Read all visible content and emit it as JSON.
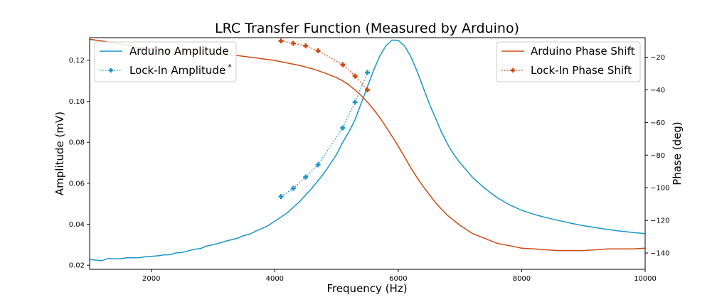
{
  "chart_data": {
    "type": "line",
    "title": "LRC Transfer Function (Measured by Arduino)",
    "xlabel": "Frequency (Hz)",
    "ylabel_left": "Amplitude (mV)",
    "ylabel_right": "Phase (deg)",
    "xlim": [
      1000,
      10000
    ],
    "ylim_left": [
      0.018,
      0.131
    ],
    "ylim_right": [
      -150,
      -8
    ],
    "xticks": [
      2000,
      4000,
      6000,
      8000,
      10000
    ],
    "yticks_left": [
      0.02,
      0.04,
      0.06,
      0.08,
      0.1,
      0.12
    ],
    "yticks_left_labels": [
      "0.02",
      "0.04",
      "0.06",
      "0.08",
      "0.10",
      "0.12"
    ],
    "yticks_right": [
      -140,
      -120,
      -100,
      -80,
      -60,
      -40,
      -20
    ],
    "grid": false,
    "legend_left": {
      "placement": "top-left",
      "entries": [
        "Arduino Amplitude",
        "Lock-In Amplitude"
      ],
      "superscript": "*"
    },
    "legend_right": {
      "placement": "top-right",
      "entries": [
        "Arduino Phase Shift",
        "Lock-In Phase Shift"
      ]
    },
    "colors": {
      "amplitude": "#1a96c8",
      "phase": "#cc4a12"
    },
    "series": [
      {
        "name": "Arduino Amplitude",
        "axis": "left",
        "style": "solid",
        "color": "#1a96c8",
        "x": [
          1000,
          1200,
          1300,
          1400,
          1500,
          1600,
          1700,
          1800,
          1900,
          2000,
          2100,
          2200,
          2300,
          2400,
          2500,
          2600,
          2700,
          2800,
          2900,
          3000,
          3100,
          3200,
          3400,
          3500,
          3600,
          3700,
          3800,
          3900,
          4000,
          4200,
          4400,
          4600,
          4800,
          5000,
          5100,
          5200,
          5300,
          5400,
          5500,
          5600,
          5700,
          5800,
          5900,
          6000,
          6100,
          6200,
          6300,
          6400,
          6500,
          6600,
          6700,
          6800,
          6900,
          7000,
          7200,
          7400,
          7600,
          7800,
          8000,
          8200,
          8400,
          8600,
          8800,
          9000,
          9200,
          9400,
          9600,
          9800,
          10000
        ],
        "y": [
          0.0228,
          0.0222,
          0.0233,
          0.0231,
          0.0232,
          0.0236,
          0.0236,
          0.0237,
          0.0241,
          0.0243,
          0.0246,
          0.025,
          0.0251,
          0.026,
          0.0262,
          0.027,
          0.0278,
          0.0282,
          0.0294,
          0.03,
          0.0308,
          0.0317,
          0.0332,
          0.0345,
          0.0352,
          0.0368,
          0.038,
          0.0395,
          0.0415,
          0.0455,
          0.051,
          0.0575,
          0.065,
          0.074,
          0.08,
          0.085,
          0.091,
          0.099,
          0.107,
          0.115,
          0.122,
          0.127,
          0.1298,
          0.1297,
          0.127,
          0.122,
          0.115,
          0.107,
          0.099,
          0.092,
          0.085,
          0.079,
          0.074,
          0.07,
          0.063,
          0.0575,
          0.053,
          0.0495,
          0.0468,
          0.0448,
          0.0432,
          0.0418,
          0.0405,
          0.0393,
          0.0383,
          0.0374,
          0.0366,
          0.036,
          0.0354
        ]
      },
      {
        "name": "Lock-In Amplitude",
        "axis": "left",
        "style": "dotted-plus",
        "color": "#1a96c8",
        "x": [
          4100,
          4300,
          4500,
          4700,
          5100,
          5300,
          5500
        ],
        "y": [
          0.0535,
          0.0575,
          0.063,
          0.069,
          0.087,
          0.0995,
          0.114
        ]
      },
      {
        "name": "Arduino Phase Shift",
        "axis": "right",
        "style": "solid",
        "color": "#cc4a12",
        "x": [
          1000,
          1200,
          1400,
          1600,
          1800,
          2000,
          2200,
          2400,
          2600,
          2800,
          3000,
          3200,
          3400,
          3600,
          3800,
          4000,
          4200,
          4400,
          4600,
          4800,
          5000,
          5100,
          5200,
          5300,
          5400,
          5500,
          5600,
          5700,
          5800,
          5900,
          6000,
          6100,
          6200,
          6300,
          6400,
          6500,
          6600,
          6700,
          6800,
          6900,
          7000,
          7200,
          7400,
          7600,
          7800,
          8000,
          8200,
          8400,
          8600,
          8800,
          9000,
          9200,
          9400,
          9600,
          9800,
          10000
        ],
        "y": [
          -9,
          -10,
          -11.5,
          -12.5,
          -14,
          -14.5,
          -15.5,
          -16,
          -17,
          -17.5,
          -18,
          -18.5,
          -19,
          -20,
          -21,
          -22,
          -23.5,
          -25,
          -27,
          -29.5,
          -32.5,
          -34.5,
          -37,
          -40,
          -43.5,
          -47.5,
          -52,
          -57,
          -62.5,
          -68.5,
          -74.5,
          -81,
          -87.5,
          -93.5,
          -99,
          -104,
          -109,
          -113,
          -117,
          -120,
          -123,
          -128,
          -131,
          -134,
          -135.5,
          -137,
          -137.5,
          -138,
          -138.5,
          -138.5,
          -138.5,
          -138,
          -137.5,
          -137.5,
          -137.5,
          -137
        ]
      },
      {
        "name": "Lock-In Phase Shift",
        "axis": "right",
        "style": "dotted-plus",
        "color": "#cc4a12",
        "x": [
          4100,
          4300,
          4500,
          4700,
          5100,
          5300,
          5500
        ],
        "y": [
          -10,
          -11.5,
          -13,
          -16,
          -24.5,
          -31.5,
          -40
        ]
      }
    ]
  }
}
